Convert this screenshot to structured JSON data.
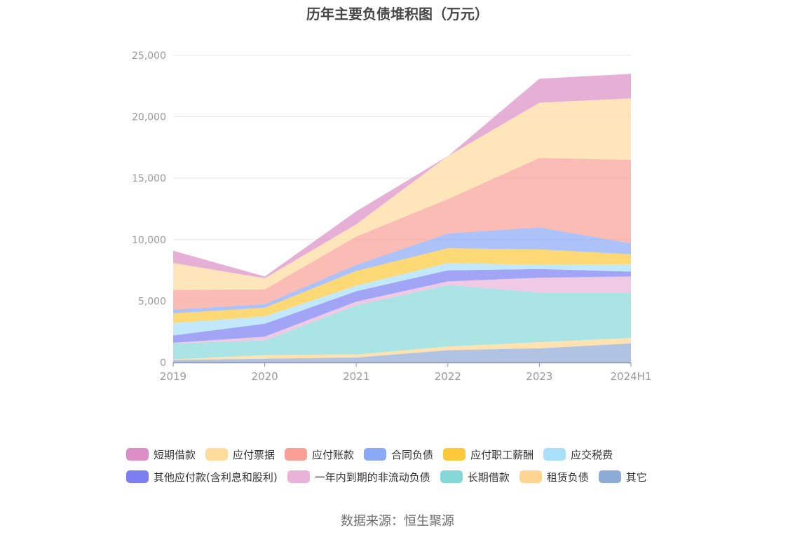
{
  "chart_data": {
    "type": "area",
    "stacked": true,
    "title": "历年主要负债堆积图（万元）",
    "categories": [
      "2019",
      "2020",
      "2021",
      "2022",
      "2023",
      "2024H1"
    ],
    "ylim": [
      0,
      25000
    ],
    "yticks": [
      "0",
      "5,000",
      "10,000",
      "15,000",
      "20,000",
      "25,000"
    ],
    "grid": true,
    "legend_position": "bottom",
    "series": [
      {
        "name": "其它",
        "color": "#8eaad6",
        "values": [
          200,
          300,
          400,
          1000,
          1150,
          1550
        ]
      },
      {
        "name": "租赁负债",
        "color": "#ffd591",
        "values": [
          50,
          300,
          250,
          300,
          500,
          450
        ]
      },
      {
        "name": "长期借款",
        "color": "#86d8d8",
        "values": [
          1300,
          1200,
          4000,
          5000,
          4050,
          3700
        ]
      },
      {
        "name": "一年内到期的非流动负债",
        "color": "#e9b3d9",
        "values": [
          50,
          300,
          300,
          300,
          1200,
          1300
        ]
      },
      {
        "name": "其他应付款(含利息和股利)",
        "color": "#7b7ff2",
        "values": [
          600,
          1050,
          850,
          900,
          700,
          400
        ]
      },
      {
        "name": "应交税费",
        "color": "#a8e0fa",
        "values": [
          1000,
          600,
          450,
          600,
          350,
          600
        ]
      },
      {
        "name": "应付职工薪酬",
        "color": "#fcc93a",
        "values": [
          800,
          700,
          1200,
          1200,
          1250,
          800
        ]
      },
      {
        "name": "合同负债",
        "color": "#8aa8f5",
        "values": [
          300,
          300,
          500,
          1200,
          1800,
          900
        ]
      },
      {
        "name": "应付账款",
        "color": "#fa9f96",
        "values": [
          1600,
          1200,
          2300,
          2800,
          5650,
          6800
        ]
      },
      {
        "name": "应付票据",
        "color": "#ffdc9c",
        "values": [
          2200,
          900,
          1000,
          3500,
          4500,
          5000
        ]
      },
      {
        "name": "短期借款",
        "color": "#db8dc5",
        "values": [
          1000,
          150,
          1050,
          0,
          1950,
          2000
        ]
      }
    ]
  },
  "legend": {
    "rows": [
      [
        {
          "label": "短期借款",
          "color": "#db8dc5"
        },
        {
          "label": "应付票据",
          "color": "#ffdc9c"
        },
        {
          "label": "应付账款",
          "color": "#fa9f96"
        },
        {
          "label": "合同负债",
          "color": "#8aa8f5"
        },
        {
          "label": "应付职工薪酬",
          "color": "#fcc93a"
        },
        {
          "label": "应交税费",
          "color": "#a8e0fa"
        }
      ],
      [
        {
          "label": "其他应付款(含利息和股利)",
          "color": "#7b7ff2"
        },
        {
          "label": "一年内到期的非流动负债",
          "color": "#e9b3d9"
        },
        {
          "label": "长期借款",
          "color": "#86d8d8"
        },
        {
          "label": "租赁负债",
          "color": "#ffd591"
        },
        {
          "label": "其它",
          "color": "#8eaad6"
        }
      ]
    ]
  },
  "source_note": "数据来源：恒生聚源"
}
